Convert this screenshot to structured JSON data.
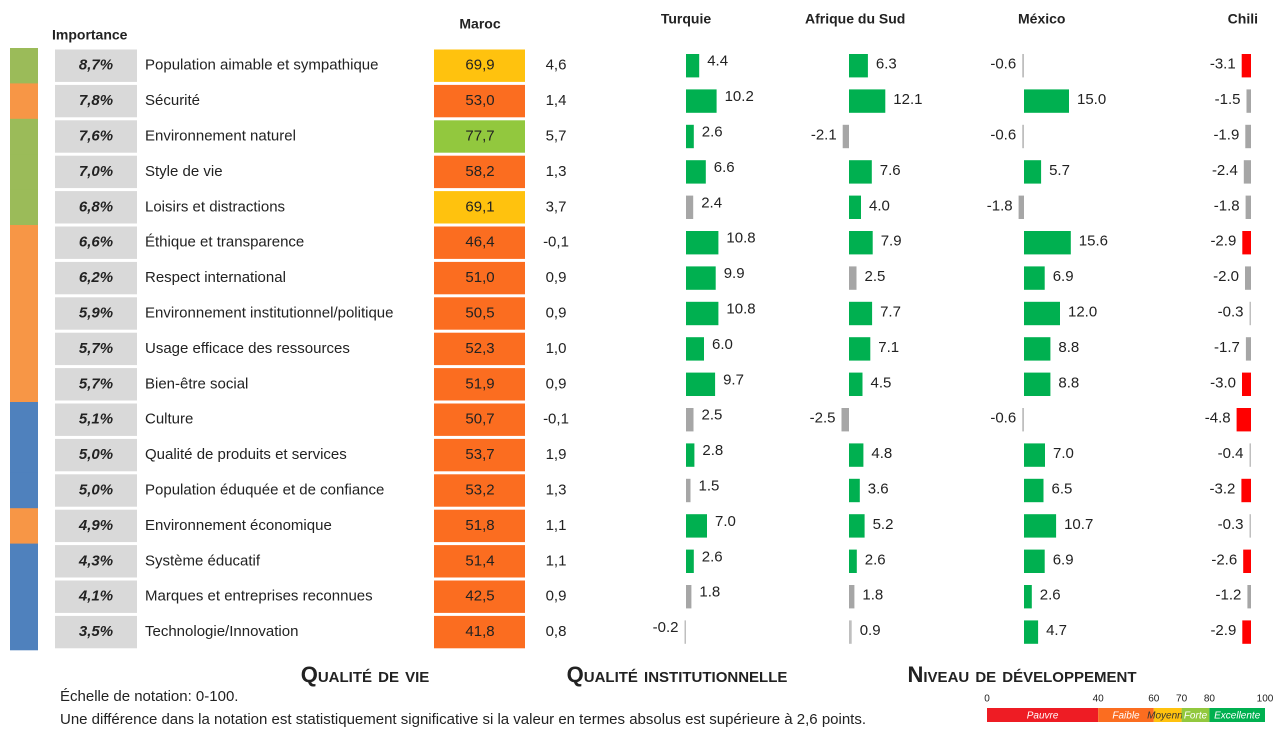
{
  "headers": {
    "importance": "Importance",
    "maroc": "Maroc",
    "countries": [
      "Turquie",
      "Afrique du Sud",
      "México",
      "Chili"
    ]
  },
  "rows": [
    {
      "group": 0,
      "importance": 8.7,
      "importance_label": "8,7%",
      "attribute": "Population aimable et sympathique",
      "score": 69.9,
      "score_label": "69,9",
      "delta": 4.6,
      "delta_label": "4,6",
      "diffs": [
        4.4,
        6.3,
        -0.6,
        -3.1
      ],
      "diff_labels": [
        "4.4",
        "6.3",
        "-0.6",
        "-3.1"
      ]
    },
    {
      "group": 1,
      "importance": 7.8,
      "importance_label": "7,8%",
      "attribute": "Sécurité",
      "score": 53.0,
      "score_label": "53,0",
      "delta": 1.4,
      "delta_label": "1,4",
      "diffs": [
        10.2,
        12.1,
        15.0,
        -1.5
      ],
      "diff_labels": [
        "10.2",
        "12.1",
        "15.0",
        "-1.5"
      ]
    },
    {
      "group": 0,
      "importance": 7.6,
      "importance_label": "7,6%",
      "attribute": "Environnement naturel",
      "score": 77.7,
      "score_label": "77,7",
      "delta": 5.7,
      "delta_label": "5,7",
      "diffs": [
        2.6,
        -2.1,
        -0.6,
        -1.9
      ],
      "diff_labels": [
        "2.6",
        "-2.1",
        "-0.6",
        "-1.9"
      ]
    },
    {
      "group": 0,
      "importance": 7.0,
      "importance_label": "7,0%",
      "attribute": "Style de vie",
      "score": 58.2,
      "score_label": "58,2",
      "delta": 1.3,
      "delta_label": "1,3",
      "diffs": [
        6.6,
        7.6,
        5.7,
        -2.4
      ],
      "diff_labels": [
        "6.6",
        "7.6",
        "5.7",
        "-2.4"
      ]
    },
    {
      "group": 0,
      "importance": 6.8,
      "importance_label": "6,8%",
      "attribute": "Loisirs et distractions",
      "score": 69.1,
      "score_label": "69,1",
      "delta": 3.7,
      "delta_label": "3,7",
      "diffs": [
        2.4,
        4.0,
        -1.8,
        -1.8
      ],
      "diff_labels": [
        "2.4",
        "4.0",
        "-1.8",
        "-1.8"
      ]
    },
    {
      "group": 1,
      "importance": 6.6,
      "importance_label": "6,6%",
      "attribute": "Éthique et transparence",
      "score": 46.4,
      "score_label": "46,4",
      "delta": -0.1,
      "delta_label": "-0,1",
      "diffs": [
        10.8,
        7.9,
        15.6,
        -2.9
      ],
      "diff_labels": [
        "10.8",
        "7.9",
        "15.6",
        "-2.9"
      ]
    },
    {
      "group": 1,
      "importance": 6.2,
      "importance_label": "6,2%",
      "attribute": "Respect international",
      "score": 51.0,
      "score_label": "51,0",
      "delta": 0.9,
      "delta_label": "0,9",
      "diffs": [
        9.9,
        2.5,
        6.9,
        -2.0
      ],
      "diff_labels": [
        "9.9",
        "2.5",
        "6.9",
        "-2.0"
      ]
    },
    {
      "group": 1,
      "importance": 5.9,
      "importance_label": "5,9%",
      "attribute": "Environnement institutionnel/politique",
      "score": 50.5,
      "score_label": "50,5",
      "delta": 0.9,
      "delta_label": "0,9",
      "diffs": [
        10.8,
        7.7,
        12.0,
        -0.3
      ],
      "diff_labels": [
        "10.8",
        "7.7",
        "12.0",
        "-0.3"
      ]
    },
    {
      "group": 1,
      "importance": 5.7,
      "importance_label": "5,7%",
      "attribute": "Usage efficace des ressources",
      "score": 52.3,
      "score_label": "52,3",
      "delta": 1.0,
      "delta_label": "1,0",
      "diffs": [
        6.0,
        7.1,
        8.8,
        -1.7
      ],
      "diff_labels": [
        "6.0",
        "7.1",
        "8.8",
        "-1.7"
      ]
    },
    {
      "group": 1,
      "importance": 5.7,
      "importance_label": "5,7%",
      "attribute": "Bien-être social",
      "score": 51.9,
      "score_label": "51,9",
      "delta": 0.9,
      "delta_label": "0,9",
      "diffs": [
        9.7,
        4.5,
        8.8,
        -3.0
      ],
      "diff_labels": [
        "9.7",
        "4.5",
        "8.8",
        "-3.0"
      ]
    },
    {
      "group": 2,
      "importance": 5.1,
      "importance_label": "5,1%",
      "attribute": "Culture",
      "score": 50.7,
      "score_label": "50,7",
      "delta": -0.1,
      "delta_label": "-0,1",
      "diffs": [
        2.5,
        -2.5,
        -0.6,
        -4.8
      ],
      "diff_labels": [
        "2.5",
        "-2.5",
        "-0.6",
        "-4.8"
      ]
    },
    {
      "group": 2,
      "importance": 5.0,
      "importance_label": "5,0%",
      "attribute": "Qualité de produits et services",
      "score": 53.7,
      "score_label": "53,7",
      "delta": 1.9,
      "delta_label": "1,9",
      "diffs": [
        2.8,
        4.8,
        7.0,
        -0.4
      ],
      "diff_labels": [
        "2.8",
        "4.8",
        "7.0",
        "-0.4"
      ]
    },
    {
      "group": 2,
      "importance": 5.0,
      "importance_label": "5,0%",
      "attribute": "Population éduquée et de confiance",
      "score": 53.2,
      "score_label": "53,2",
      "delta": 1.3,
      "delta_label": "1,3",
      "diffs": [
        1.5,
        3.6,
        6.5,
        -3.2
      ],
      "diff_labels": [
        "1.5",
        "3.6",
        "6.5",
        "-3.2"
      ]
    },
    {
      "group": 1,
      "importance": 4.9,
      "importance_label": "4,9%",
      "attribute": "Environnement économique",
      "score": 51.8,
      "score_label": "51,8",
      "delta": 1.1,
      "delta_label": "1,1",
      "diffs": [
        7.0,
        5.2,
        10.7,
        -0.3
      ],
      "diff_labels": [
        "7.0",
        "5.2",
        "10.7",
        "-0.3"
      ]
    },
    {
      "group": 2,
      "importance": 4.3,
      "importance_label": "4,3%",
      "attribute": "Système éducatif",
      "score": 51.4,
      "score_label": "51,4",
      "delta": 1.1,
      "delta_label": "1,1",
      "diffs": [
        2.6,
        2.6,
        6.9,
        -2.6
      ],
      "diff_labels": [
        "2.6",
        "2.6",
        "6.9",
        "-2.6"
      ]
    },
    {
      "group": 2,
      "importance": 4.1,
      "importance_label": "4,1%",
      "attribute": "Marques et entreprises reconnues",
      "score": 42.5,
      "score_label": "42,5",
      "delta": 0.9,
      "delta_label": "0,9",
      "diffs": [
        1.8,
        1.8,
        2.6,
        -1.2
      ],
      "diff_labels": [
        "1.8",
        "1.8",
        "2.6",
        "-1.2"
      ]
    },
    {
      "group": 2,
      "importance": 3.5,
      "importance_label": "3,5%",
      "attribute": "Technologie/Innovation",
      "score": 41.8,
      "score_label": "41,8",
      "delta": 0.8,
      "delta_label": "0,8",
      "diffs": [
        -0.2,
        0.9,
        4.7,
        -2.9
      ],
      "diff_labels": [
        "-0.2",
        "0.9",
        "4.7",
        "-2.9"
      ]
    }
  ],
  "groups": [
    {
      "name": "Qualité de vie",
      "color": "#9bbb59",
      "text_color": "#1fa64a"
    },
    {
      "name": "Qualité institutionnelle",
      "color": "#f79646",
      "text_color": "#f07c22"
    },
    {
      "name": "Niveau de développement",
      "color": "#4f81bd",
      "text_color": "#1b5f9e"
    }
  ],
  "scale": {
    "ticks": [
      0,
      40,
      60,
      70,
      80,
      100
    ],
    "bands": [
      {
        "label": "Pauvre",
        "color": "#ee1c24"
      },
      {
        "label": "Faible",
        "color": "#fb6d20"
      },
      {
        "label": "Moyenne",
        "color": "#ffc20e"
      },
      {
        "label": "Forte",
        "color": "#92c83e"
      },
      {
        "label": "Excellente",
        "color": "#00b050"
      }
    ]
  },
  "significance": 2.6,
  "colors": {
    "positive": "#00b050",
    "neutral": "#a6a6a6",
    "negative": "#ff0000",
    "delta_positive": "#3cb95a",
    "delta_neutral": "#bdbdbd"
  },
  "notes": [
    "Échelle de notation: 0-100.",
    "Une différence dans la notation est statistiquement significative si la valeur en termes absolus est supérieure à 2,6 points."
  ]
}
